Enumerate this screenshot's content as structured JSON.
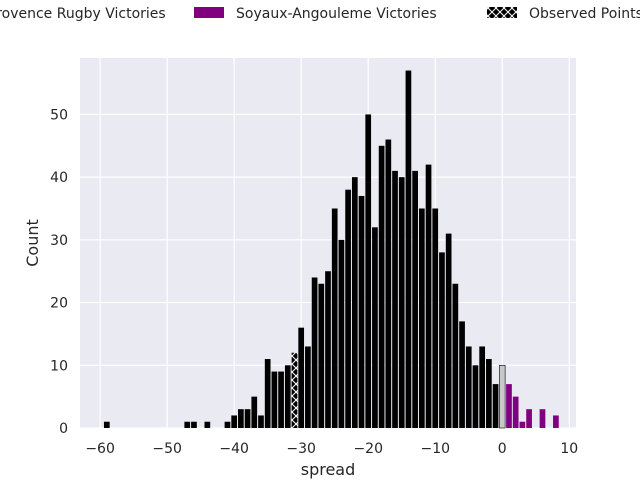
{
  "chart_data": {
    "type": "bar",
    "xlabel": "spread",
    "ylabel": "Count",
    "xlim": [
      -63,
      11
    ],
    "ylim": [
      0,
      59
    ],
    "xticks": [
      -60,
      -50,
      -40,
      -30,
      -20,
      -10,
      0,
      10
    ],
    "xtick_labels": [
      "−60",
      "−50",
      "−40",
      "−30",
      "−20",
      "−10",
      "0",
      "10"
    ],
    "yticks": [
      0,
      10,
      20,
      30,
      40,
      50
    ],
    "grid": true,
    "background": "#eaeaf2",
    "legend": {
      "placement": "top, above plot",
      "entries": [
        {
          "label": "Provence Rugby Victories",
          "color": "#000000",
          "style": "solid"
        },
        {
          "label": "Soyaux-Angouleme Victories",
          "color": "#800080",
          "style": "solid"
        },
        {
          "label": "Observed Points",
          "color": "#000000",
          "style": "hatched-x"
        }
      ]
    },
    "series": [
      {
        "name": "Provence Rugby Victories",
        "color": "#000000",
        "x": [
          -59,
          -47,
          -46,
          -44,
          -41,
          -40,
          -39,
          -38,
          -37,
          -36,
          -35,
          -34,
          -33,
          -32,
          -30,
          -29,
          -28,
          -27,
          -26,
          -25,
          -24,
          -23,
          -22,
          -21,
          -20,
          -19,
          -18,
          -17,
          -16,
          -15,
          -14,
          -13,
          -12,
          -11,
          -10,
          -9,
          -8,
          -7,
          -6,
          -5,
          -4,
          -3,
          -2,
          -1
        ],
        "values": [
          1,
          1,
          1,
          1,
          1,
          2,
          3,
          3,
          5,
          2,
          11,
          9,
          9,
          10,
          16,
          13,
          24,
          23,
          25,
          35,
          30,
          38,
          40,
          37,
          50,
          32,
          45,
          46,
          41,
          40,
          57,
          41,
          35,
          42,
          35,
          28,
          31,
          23,
          17,
          13,
          10,
          13,
          11,
          7
        ]
      },
      {
        "name": "Soyaux-Angouleme Victories",
        "color": "#800080",
        "x": [
          1,
          2,
          3,
          4,
          6,
          8
        ],
        "values": [
          7,
          5,
          1,
          3,
          3,
          2
        ]
      },
      {
        "name": "",
        "color": "#c8c8c8",
        "x": [
          0
        ],
        "values": [
          10
        ]
      }
    ],
    "observed": {
      "name": "Observed Points",
      "x": -31,
      "value": 12
    }
  }
}
